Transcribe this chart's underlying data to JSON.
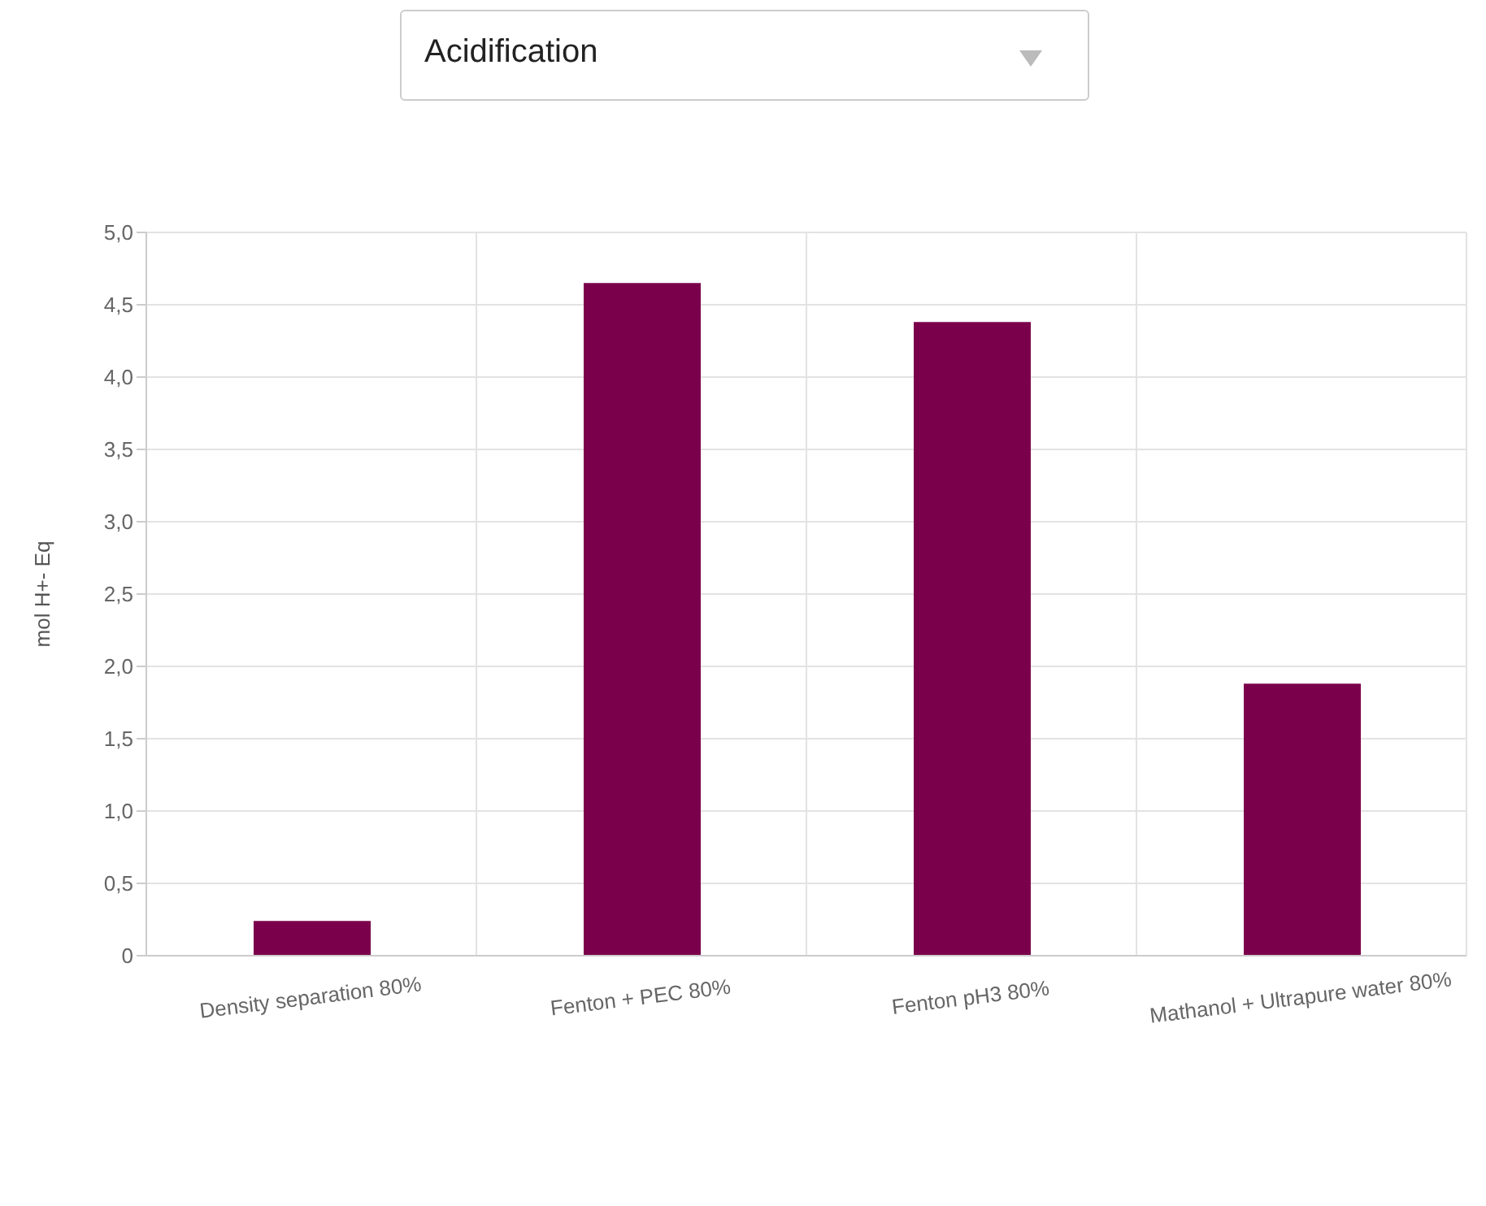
{
  "chart_data": {
    "type": "bar",
    "title": "Acidification",
    "ylabel": "mol H+- Eq",
    "categories": [
      "Density separation 80%",
      "Fenton + PEC 80%",
      "Fenton pH3 80%",
      "Mathanol + Ultrapure water 80%"
    ],
    "values": [
      0.24,
      4.65,
      4.38,
      1.88
    ],
    "color": "#7b004c",
    "ylim": [
      0,
      5
    ],
    "yticks": [
      0,
      {
        "value": 0.5,
        "label": "0,5"
      },
      {
        "value": 1,
        "label": "1,0"
      },
      {
        "value": 1.5,
        "label": "1,5"
      },
      {
        "value": 2,
        "label": "2,0"
      },
      {
        "value": 2.5,
        "label": "2,5"
      },
      {
        "value": 3,
        "label": "3,0"
      },
      {
        "value": 3.5,
        "label": "3,5"
      },
      {
        "value": 4,
        "label": "4,0"
      },
      {
        "value": 4.5,
        "label": "4,5"
      },
      {
        "value": 5,
        "label": "5,0"
      }
    ],
    "grid": true
  }
}
